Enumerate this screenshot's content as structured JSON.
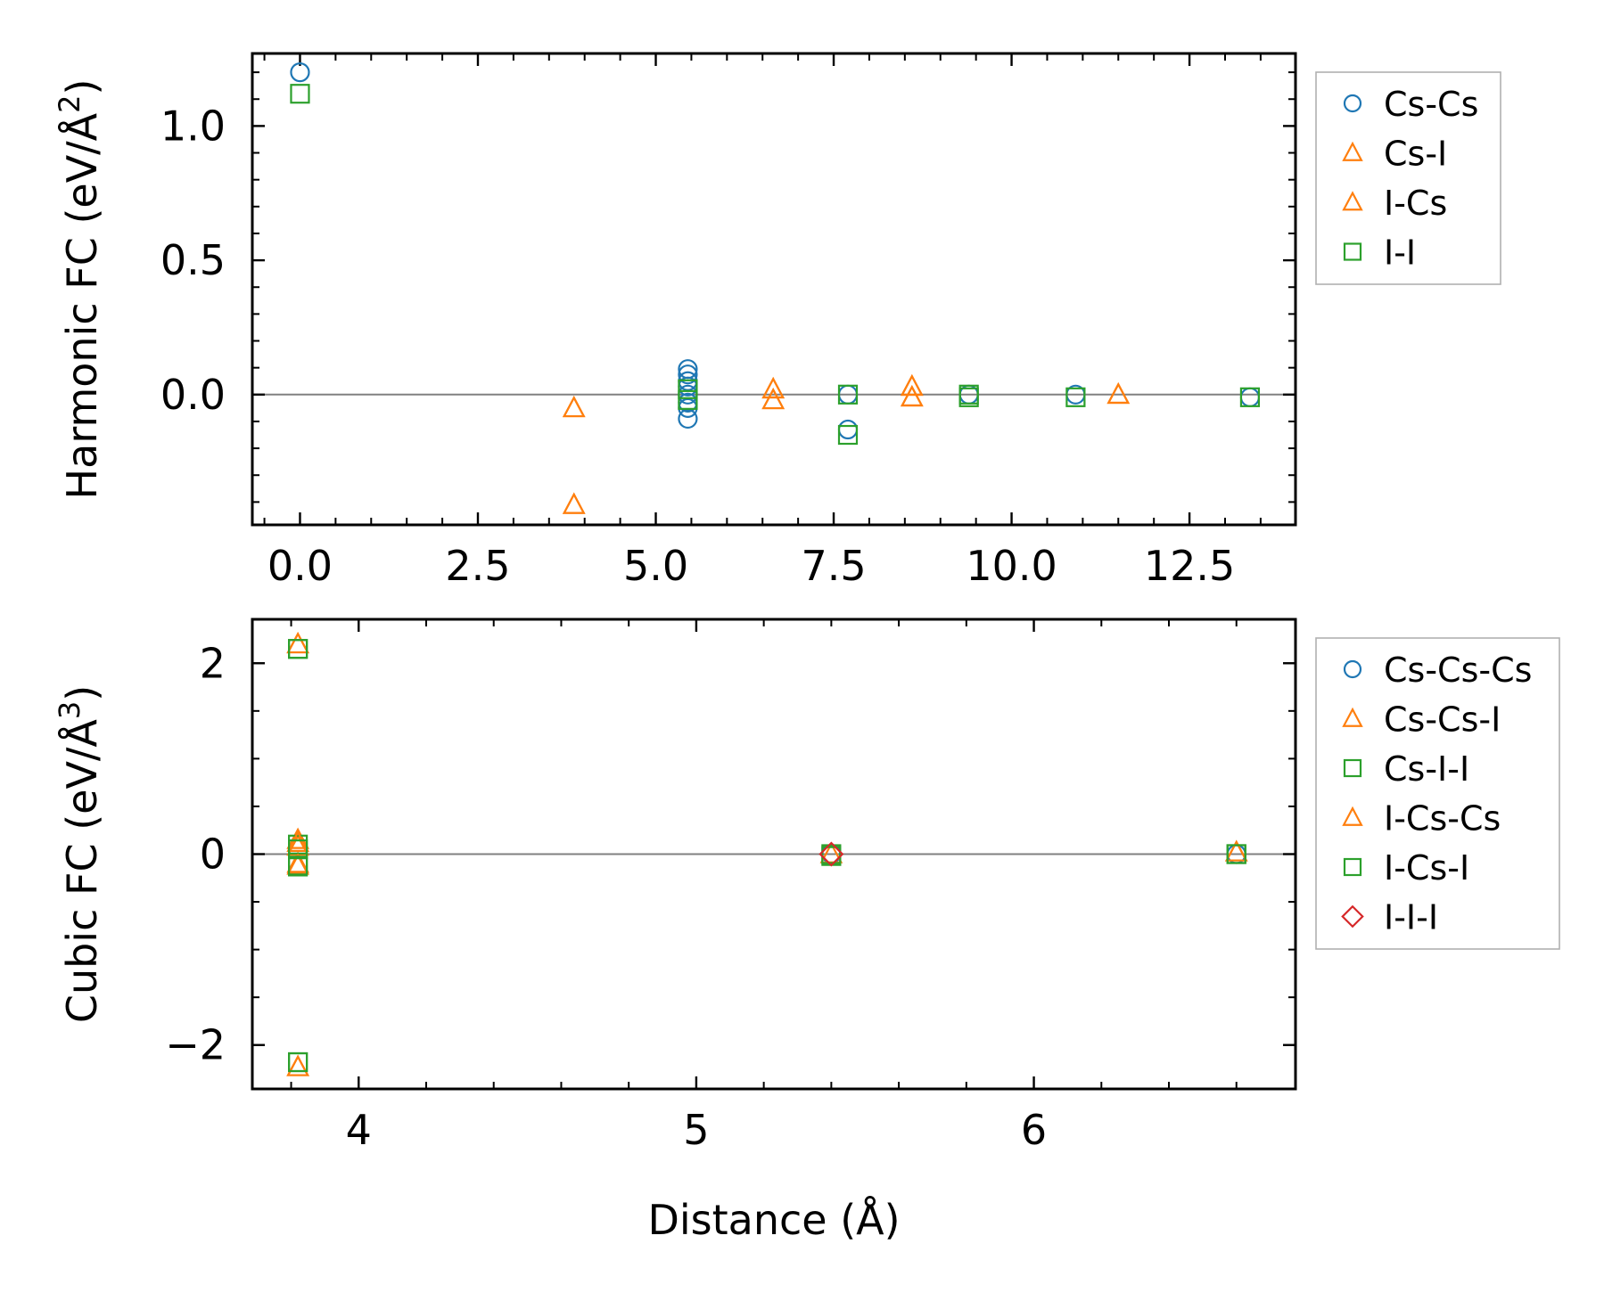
{
  "colors": {
    "blue": "#1f77b4",
    "orange": "#ff7f0e",
    "green": "#2ca02c",
    "red": "#d62728",
    "zero_line": "#808080"
  },
  "chart_data": [
    {
      "type": "scatter",
      "id": "harmonic",
      "ylabel": "Harmonic FC (eV/Å",
      "ylabel_sup": "2",
      "ylabel_end": ")",
      "xlabel": "",
      "xlim": [
        -0.67,
        13.99
      ],
      "ylim": [
        -0.485,
        1.27
      ],
      "xticks": [
        0.0,
        2.5,
        5.0,
        7.5,
        10.0,
        12.5
      ],
      "xtick_labels": [
        "0.0",
        "2.5",
        "5.0",
        "7.5",
        "10.0",
        "12.5"
      ],
      "yticks": [
        0.0,
        0.5,
        1.0
      ],
      "ytick_labels": [
        "0.0",
        "0.5",
        "1.0"
      ],
      "x_minor_step": 0.5,
      "y_minor_step": 0.1,
      "zero_line": true,
      "legend_position": "outside-right-top",
      "series": [
        {
          "name": "Cs-Cs",
          "marker": "circle",
          "color": "#1f77b4",
          "points": [
            [
              0.0,
              1.2
            ],
            [
              5.45,
              0.095
            ],
            [
              5.45,
              0.075
            ],
            [
              5.45,
              0.05
            ],
            [
              5.45,
              0.03
            ],
            [
              5.45,
              0.0
            ],
            [
              5.45,
              -0.03
            ],
            [
              5.45,
              -0.05
            ],
            [
              5.45,
              -0.09
            ],
            [
              7.7,
              0.0
            ],
            [
              7.7,
              -0.13
            ],
            [
              9.4,
              0.0
            ],
            [
              10.9,
              0.0
            ],
            [
              13.35,
              -0.01
            ]
          ]
        },
        {
          "name": "Cs-I",
          "marker": "triangle",
          "color": "#ff7f0e",
          "points": [
            [
              3.85,
              -0.05
            ],
            [
              3.85,
              -0.41
            ],
            [
              6.65,
              0.02
            ],
            [
              6.65,
              -0.02
            ],
            [
              8.6,
              0.03
            ],
            [
              8.6,
              -0.01
            ],
            [
              11.5,
              0.0
            ]
          ]
        },
        {
          "name": "I-Cs",
          "marker": "triangle",
          "color": "#ff7f0e",
          "points": [
            [
              3.85,
              -0.05
            ],
            [
              3.85,
              -0.41
            ],
            [
              6.65,
              0.02
            ],
            [
              6.65,
              -0.02
            ],
            [
              8.6,
              0.03
            ],
            [
              8.6,
              -0.01
            ],
            [
              11.5,
              0.0
            ]
          ]
        },
        {
          "name": "I-I",
          "marker": "square",
          "color": "#2ca02c",
          "points": [
            [
              0.0,
              1.12
            ],
            [
              5.45,
              0.02
            ],
            [
              5.45,
              -0.02
            ],
            [
              7.7,
              0.0
            ],
            [
              7.7,
              -0.15
            ],
            [
              9.4,
              0.0
            ],
            [
              9.4,
              -0.01
            ],
            [
              10.9,
              -0.01
            ],
            [
              13.35,
              -0.01
            ]
          ]
        }
      ]
    },
    {
      "type": "scatter",
      "id": "cubic",
      "ylabel": "Cubic FC (eV/Å",
      "ylabel_sup": "3",
      "ylabel_end": ")",
      "xlabel": "Distance (Å)",
      "xlim": [
        3.685,
        6.775
      ],
      "ylim": [
        -2.46,
        2.46
      ],
      "xticks": [
        4,
        5,
        6
      ],
      "xtick_labels": [
        "4",
        "5",
        "6"
      ],
      "yticks": [
        -2,
        0,
        2
      ],
      "ytick_labels": [
        "−2",
        "0",
        "2"
      ],
      "x_minor_step": 0.2,
      "y_minor_step": 0.5,
      "zero_line": true,
      "legend_position": "outside-right-top",
      "series": [
        {
          "name": "Cs-Cs-Cs",
          "marker": "circle",
          "color": "#1f77b4",
          "points": [
            [
              5.4,
              0.0
            ],
            [
              6.6,
              0.0
            ]
          ]
        },
        {
          "name": "Cs-Cs-I",
          "marker": "triangle",
          "color": "#ff7f0e",
          "points": [
            [
              3.82,
              2.2
            ],
            [
              3.82,
              0.15
            ],
            [
              3.82,
              0.08
            ],
            [
              3.82,
              -0.1
            ],
            [
              3.82,
              -2.23
            ],
            [
              5.4,
              0.0
            ],
            [
              6.6,
              0.02
            ]
          ]
        },
        {
          "name": "Cs-I-I",
          "marker": "square",
          "color": "#2ca02c",
          "points": [
            [
              3.82,
              2.15
            ],
            [
              3.82,
              0.1
            ],
            [
              3.82,
              -0.13
            ],
            [
              3.82,
              -2.18
            ],
            [
              5.4,
              -0.02
            ],
            [
              6.6,
              0.0
            ]
          ]
        },
        {
          "name": "I-Cs-Cs",
          "marker": "triangle",
          "color": "#ff7f0e",
          "points": [
            [
              3.82,
              2.2
            ],
            [
              3.82,
              0.12
            ],
            [
              3.82,
              -0.12
            ],
            [
              3.82,
              -2.23
            ],
            [
              6.6,
              0.02
            ]
          ]
        },
        {
          "name": "I-Cs-I",
          "marker": "square",
          "color": "#2ca02c",
          "points": [
            [
              3.82,
              2.15
            ],
            [
              3.82,
              0.05
            ],
            [
              3.82,
              -0.12
            ],
            [
              3.82,
              -2.18
            ],
            [
              5.4,
              0.0
            ],
            [
              6.6,
              0.0
            ]
          ]
        },
        {
          "name": "I-I-I",
          "marker": "diamond",
          "color": "#d62728",
          "points": [
            [
              5.4,
              0.0
            ]
          ]
        }
      ]
    }
  ]
}
